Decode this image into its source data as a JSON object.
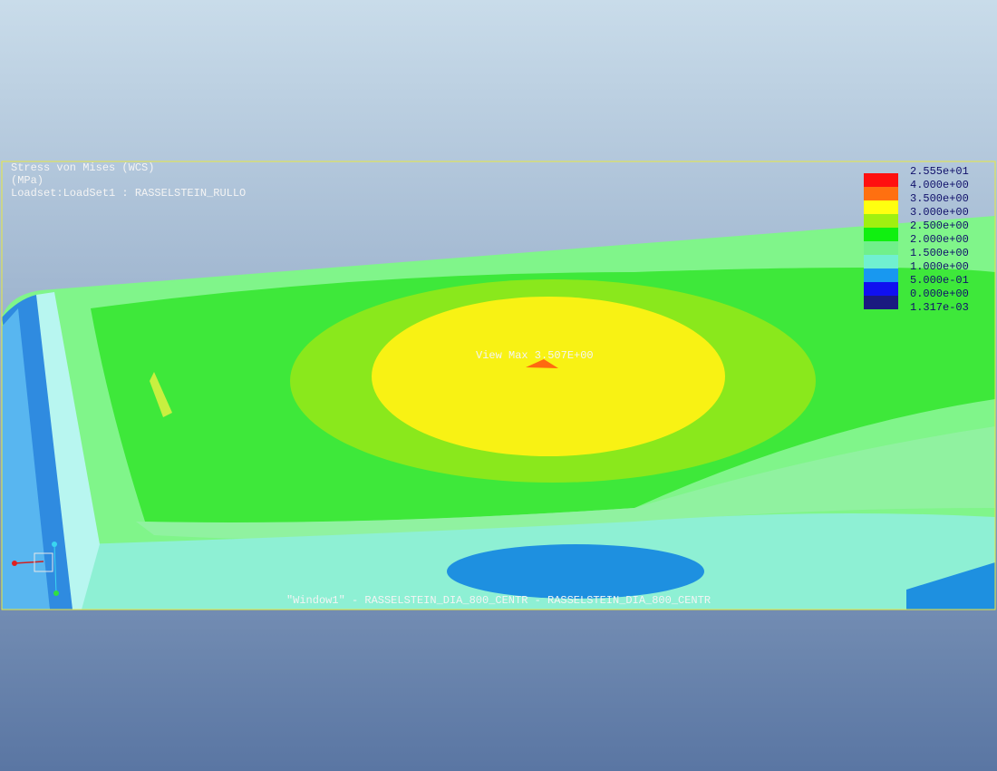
{
  "header": {
    "lines": [
      "Stress von Mises (WCS)",
      "(MPa)",
      "Loadset:LoadSet1 :  RASSELSTEIN_RULLO"
    ]
  },
  "legend": {
    "labels": [
      "2.555e+01",
      "4.000e+00",
      "3.500e+00",
      "3.000e+00",
      "2.500e+00",
      "2.000e+00",
      "1.500e+00",
      "1.000e+00",
      "5.000e-01",
      "0.000e+00",
      "1.317e-03"
    ]
  },
  "annotation": "View Max  3.507E+00",
  "caption": "\"Window1\" - RASSELSTEIN_DIA_800_CENTR - RASSELSTEIN_DIA_800_CENTR"
}
